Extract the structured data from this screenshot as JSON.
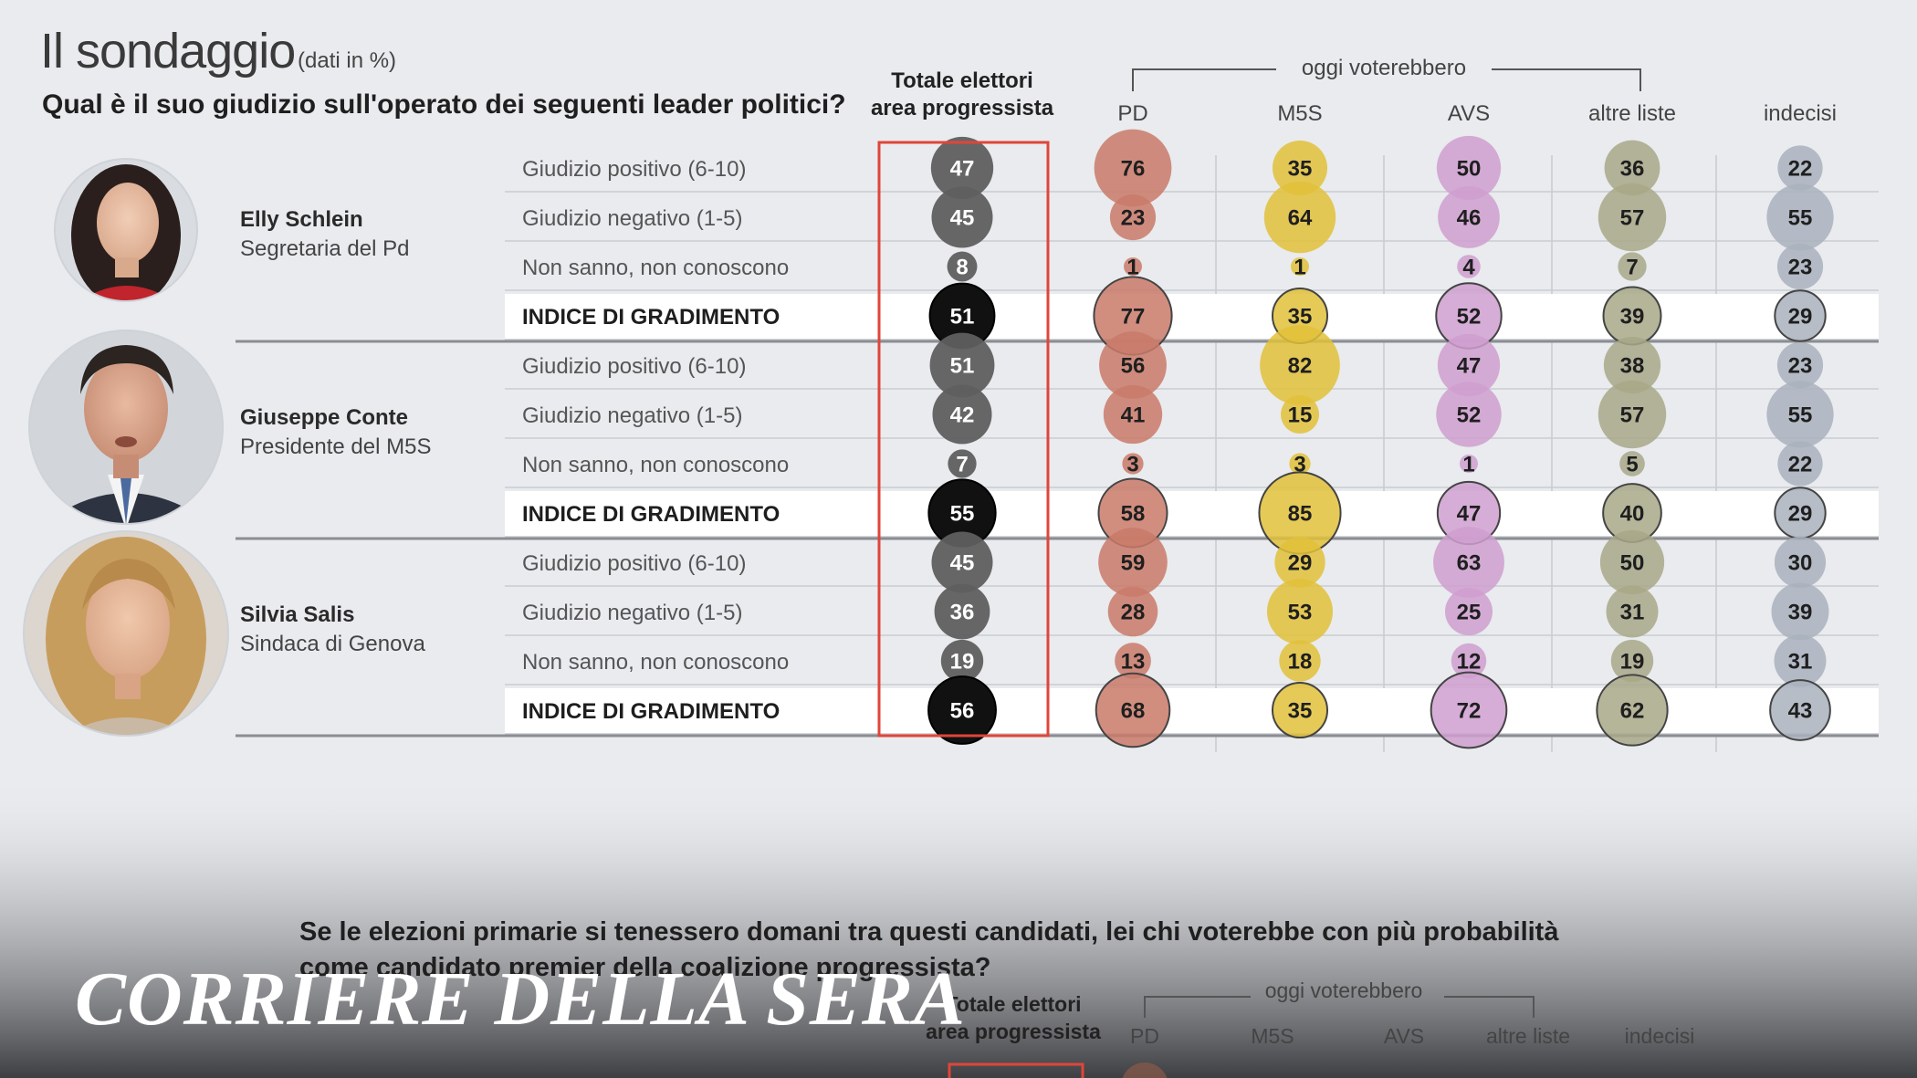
{
  "header": {
    "title": "Il sondaggio",
    "note": "(dati in %)",
    "question": "Qual è il suo giudizio sull'operato dei seguenti leader politici?",
    "group_label": "oggi voterebbero",
    "total_label_line1": "Totale elettori",
    "total_label_line2": "area progressista"
  },
  "colors": {
    "Totale": "#5f5f5f",
    "PD": "#c97a68",
    "M5S": "#e2c13a",
    "AVS": "#cf9fcf",
    "altre liste": "#a8a888",
    "indecisi": "#a9b2bd",
    "highlight_frame": "#e0453a",
    "index_total": "#111111"
  },
  "chart_data": {
    "type": "table",
    "title": "Il sondaggio",
    "subtitle": "Qual è il suo giudizio sull'operato dei seguenti leader politici?",
    "unit": "%",
    "columns": [
      "Totale elettori area progressista",
      "PD",
      "M5S",
      "AVS",
      "altre liste",
      "indecisi"
    ],
    "column_labels": [
      "PD",
      "M5S",
      "AVS",
      "altre liste",
      "indecisi"
    ],
    "row_labels": [
      "Giudizio positivo (6-10)",
      "Giudizio negativo (1-5)",
      "Non sanno, non conoscono",
      "INDICE DI GRADIMENTO"
    ],
    "leaders": [
      {
        "name": "Elly Schlein",
        "role": "Segretaria del Pd",
        "rows": [
          [
            47,
            76,
            35,
            50,
            36,
            22
          ],
          [
            45,
            23,
            64,
            46,
            57,
            55
          ],
          [
            8,
            1,
            1,
            4,
            7,
            23
          ],
          [
            51,
            77,
            35,
            52,
            39,
            29
          ]
        ]
      },
      {
        "name": "Giuseppe Conte",
        "role": "Presidente del M5S",
        "rows": [
          [
            51,
            56,
            82,
            47,
            38,
            23
          ],
          [
            42,
            41,
            15,
            52,
            57,
            55
          ],
          [
            7,
            3,
            3,
            1,
            5,
            22
          ],
          [
            55,
            58,
            85,
            47,
            40,
            29
          ]
        ]
      },
      {
        "name": "Silvia Salis",
        "role": "Sindaca di Genova",
        "rows": [
          [
            45,
            59,
            29,
            63,
            50,
            30
          ],
          [
            36,
            28,
            53,
            25,
            31,
            39
          ],
          [
            19,
            13,
            18,
            12,
            19,
            31
          ],
          [
            56,
            68,
            35,
            72,
            62,
            43
          ]
        ]
      }
    ]
  },
  "second_question": {
    "line1": "Se le elezioni primarie si tenessero domani tra questi candidati, lei chi voterebbe con più probabilità",
    "line2": "come candidato premier della coalizione progressista?",
    "group_label": "oggi voterebbero",
    "total_label_line1": "Totale elettori",
    "total_label_line2": "area progressista",
    "columns": [
      "PD",
      "M5S",
      "AVS",
      "altre liste",
      "indecisi"
    ]
  },
  "brand": "CORRIERE DELLA SERA"
}
